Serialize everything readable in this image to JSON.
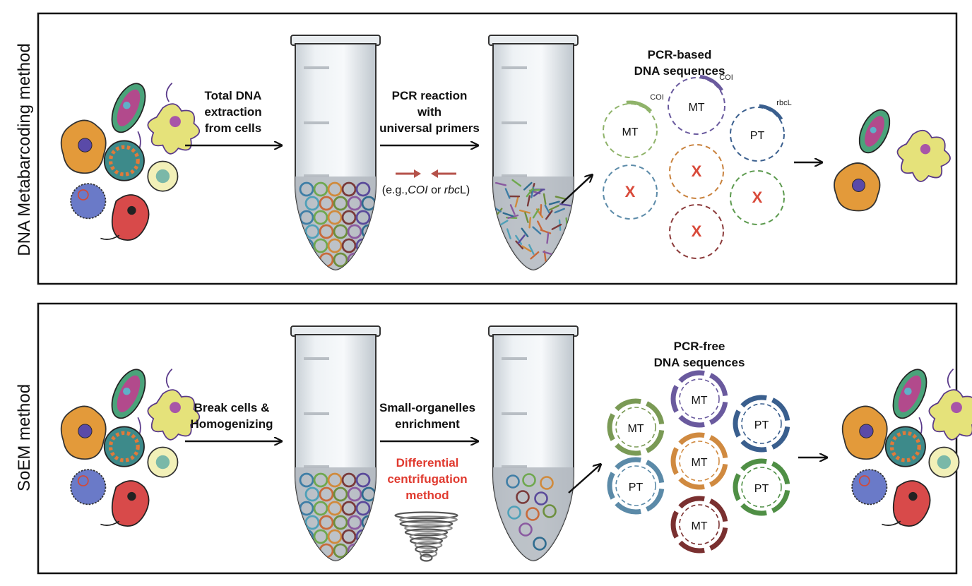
{
  "top": {
    "side_label": "DNA Metabarcoding method",
    "step1": [
      "Total DNA",
      "extraction",
      "from cells"
    ],
    "step2": [
      "PCR reaction",
      "with",
      "universal primers"
    ],
    "primer_note_prefix": "(e.g.,",
    "primer_note_coi": "COI",
    "primer_note_mid": " or ",
    "primer_note_rbc": "rbc",
    "primer_note_suffix": "L)",
    "result_title": [
      "PCR-based",
      "DNA sequences"
    ],
    "circles": [
      {
        "label": "MT",
        "color": "#8fb36a",
        "marker": "COI"
      },
      {
        "label": "MT",
        "color": "#6a5a9e",
        "marker": "COI"
      },
      {
        "label": "PT",
        "color": "#3a5f8e",
        "marker": "rbcL"
      },
      {
        "label": "X",
        "color": "#5b8aa8"
      },
      {
        "label": "X",
        "color": "#c9823d"
      },
      {
        "label": "X",
        "color": "#5c9a4e"
      },
      {
        "label": "X",
        "color": "#8c3b3b"
      }
    ]
  },
  "bottom": {
    "side_label": "SoEM method",
    "step1": [
      "Break cells &",
      "Homogenizing"
    ],
    "step2": [
      "Small-organelles",
      "enrichment"
    ],
    "step2_red": [
      "Differential",
      "centrifugation",
      "method"
    ],
    "result_title": [
      "PCR-free",
      "DNA sequences"
    ],
    "circles": [
      {
        "label": "MT",
        "color": "#7a9a55"
      },
      {
        "label": "MT",
        "color": "#6a5a9e"
      },
      {
        "label": "PT",
        "color": "#3a5f8e"
      },
      {
        "label": "MT",
        "color": "#d08a40"
      },
      {
        "label": "PT",
        "color": "#5b8aa8"
      },
      {
        "label": "PT",
        "color": "#4f8f45"
      },
      {
        "label": "MT",
        "color": "#7a3030"
      }
    ]
  },
  "colors": {
    "frame": "#111111",
    "arrow": "#111111",
    "primer_arrow": "#b5524a",
    "red_text": "#e03a2f"
  }
}
